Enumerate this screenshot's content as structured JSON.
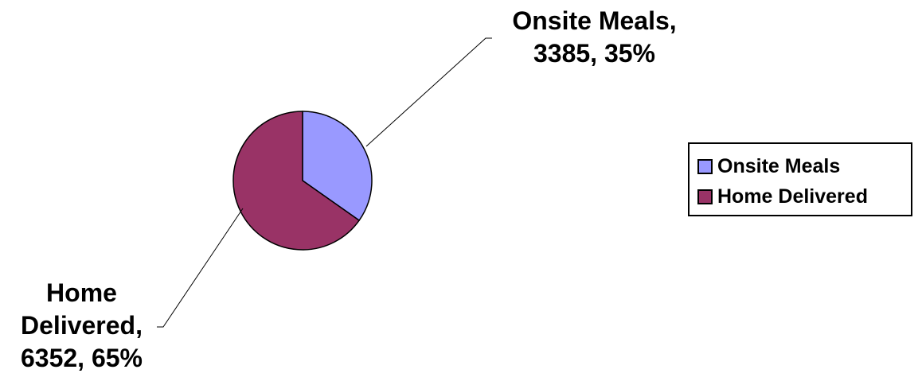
{
  "chart_data": {
    "type": "pie",
    "title": "",
    "slices": [
      {
        "name": "Onsite Meals",
        "value": 3385,
        "percent": "35%",
        "label_line1": "Onsite Meals,",
        "label_line2": "3385, 35%",
        "color": "#9999ff"
      },
      {
        "name": "Home Delivered",
        "value": 6352,
        "percent": "65%",
        "label_line1": "Home",
        "label_line2": "Delivered,",
        "label_line3": "6352, 65%",
        "color": "#993366"
      }
    ],
    "legend": {
      "placement": "right",
      "items": [
        "Onsite Meals",
        "Home Delivered"
      ]
    }
  }
}
